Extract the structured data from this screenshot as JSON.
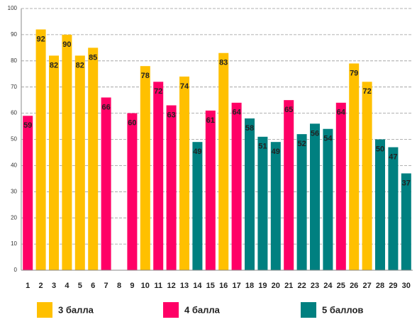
{
  "chart_data": {
    "type": "bar",
    "categories": [
      "1",
      "2",
      "3",
      "4",
      "5",
      "6",
      "7",
      "8",
      "9",
      "10",
      "11",
      "12",
      "13",
      "14",
      "15",
      "16",
      "17",
      "18",
      "19",
      "20",
      "21",
      "22",
      "23",
      "24",
      "25",
      "26",
      "27",
      "28",
      "29",
      "30"
    ],
    "series": [
      {
        "name": "3 балла",
        "color": "#ffc000",
        "values": [
          null,
          92,
          82,
          90,
          82,
          85,
          null,
          null,
          null,
          78,
          null,
          null,
          74,
          null,
          null,
          83,
          null,
          null,
          null,
          null,
          null,
          null,
          null,
          null,
          null,
          79,
          72,
          null,
          null,
          null
        ]
      },
      {
        "name": "4 балла",
        "color": "#ff0066",
        "values": [
          59,
          null,
          null,
          null,
          null,
          null,
          66,
          null,
          60,
          null,
          72,
          63,
          null,
          null,
          61,
          null,
          64,
          null,
          null,
          null,
          65,
          null,
          null,
          null,
          64,
          null,
          null,
          null,
          null,
          null
        ]
      },
      {
        "name": "5 баллов",
        "color": "#008080",
        "values": [
          null,
          null,
          null,
          null,
          null,
          null,
          null,
          null,
          null,
          null,
          null,
          null,
          null,
          49,
          null,
          null,
          null,
          58,
          51,
          49,
          null,
          52,
          56,
          54,
          null,
          null,
          null,
          50,
          47,
          37
        ]
      }
    ],
    "ylim": [
      0,
      100
    ],
    "yticks": [
      0,
      10,
      20,
      30,
      40,
      50,
      60,
      70,
      80,
      90,
      100
    ],
    "grid": true
  }
}
